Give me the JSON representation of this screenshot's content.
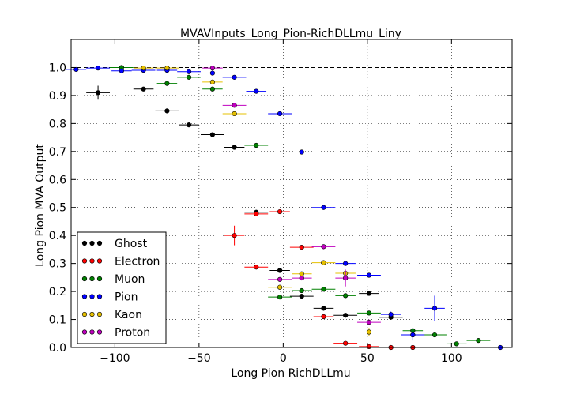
{
  "chart_data": {
    "type": "scatter",
    "title": "MVAVInputs_Long_Pion-RichDLLmu_Liny",
    "xlabel": "Long Pion RichDLLmu",
    "ylabel": "Long Pion MVA Output",
    "xlim": [
      -126,
      136
    ],
    "ylim": [
      0.0,
      1.1
    ],
    "x_ticks": [
      -100,
      -50,
      0,
      50,
      100
    ],
    "y_ticks": [
      0.0,
      0.1,
      0.2,
      0.3,
      0.4,
      0.5,
      0.6,
      0.7,
      0.8,
      0.9,
      1.0
    ],
    "x_tick_labels": [
      "−100",
      "−50",
      "0",
      "50",
      "100"
    ],
    "y_tick_labels": [
      "0.0",
      "0.1",
      "0.2",
      "0.3",
      "0.4",
      "0.5",
      "0.6",
      "0.7",
      "0.8",
      "0.9",
      "1.0"
    ],
    "reference_line_y": 1.0,
    "grid": true,
    "legend_position": "lower-left",
    "series": [
      {
        "name": "Ghost",
        "color": "#000000",
        "points": [
          {
            "x": -110,
            "y": 0.91,
            "xerr": 7,
            "yerr": 0.025
          },
          {
            "x": -83,
            "y": 0.923,
            "xerr": 6,
            "yerr": 0.005
          },
          {
            "x": -69,
            "y": 0.845,
            "xerr": 7,
            "yerr": 0.005
          },
          {
            "x": -56,
            "y": 0.795,
            "xerr": 6,
            "yerr": 0.005
          },
          {
            "x": -42,
            "y": 0.76,
            "xerr": 7,
            "yerr": 0.005
          },
          {
            "x": -29,
            "y": 0.715,
            "xerr": 6,
            "yerr": 0.005
          },
          {
            "x": -16,
            "y": 0.483,
            "xerr": 7,
            "yerr": 0.008
          },
          {
            "x": -2,
            "y": 0.275,
            "xerr": 6,
            "yerr": 0.008
          },
          {
            "x": 11,
            "y": 0.183,
            "xerr": 7,
            "yerr": 0.008
          },
          {
            "x": 24,
            "y": 0.14,
            "xerr": 6,
            "yerr": 0.008
          },
          {
            "x": 37,
            "y": 0.115,
            "xerr": 7,
            "yerr": 0.006
          },
          {
            "x": 51,
            "y": 0.193,
            "xerr": 6,
            "yerr": 0.008
          },
          {
            "x": 64,
            "y": 0.108,
            "xerr": 7,
            "yerr": 0.008
          },
          {
            "x": 77,
            "y": 0.045,
            "xerr": 6,
            "yerr": 0.01
          }
        ]
      },
      {
        "name": "Electron",
        "color": "#ff0000",
        "points": [
          {
            "x": -29,
            "y": 0.4,
            "xerr": 6,
            "yerr": 0.035
          },
          {
            "x": -16,
            "y": 0.477,
            "xerr": 7,
            "yerr": 0.008
          },
          {
            "x": -2,
            "y": 0.485,
            "xerr": 6,
            "yerr": 0.006
          },
          {
            "x": -16,
            "y": 0.287,
            "xerr": 7,
            "yerr": 0.006
          },
          {
            "x": 11,
            "y": 0.358,
            "xerr": 7,
            "yerr": 0.006
          },
          {
            "x": 24,
            "y": 0.11,
            "xerr": 6,
            "yerr": 0.006
          },
          {
            "x": 37,
            "y": 0.015,
            "xerr": 7,
            "yerr": 0.005
          },
          {
            "x": 51,
            "y": 0.003,
            "xerr": 6,
            "yerr": 0.003
          },
          {
            "x": 64,
            "y": 0.0,
            "xerr": 7,
            "yerr": 0.002
          },
          {
            "x": 77,
            "y": 0.0,
            "xerr": 6,
            "yerr": 0.002
          }
        ]
      },
      {
        "name": "Muon",
        "color": "#008000",
        "points": [
          {
            "x": -96,
            "y": 1.0,
            "xerr": 7,
            "yerr": 0.003
          },
          {
            "x": -69,
            "y": 0.943,
            "xerr": 6,
            "yerr": 0.005
          },
          {
            "x": -56,
            "y": 0.965,
            "xerr": 7,
            "yerr": 0.004
          },
          {
            "x": -42,
            "y": 0.923,
            "xerr": 6,
            "yerr": 0.005
          },
          {
            "x": -16,
            "y": 0.722,
            "xerr": 7,
            "yerr": 0.006
          },
          {
            "x": -2,
            "y": 0.18,
            "xerr": 7,
            "yerr": 0.006
          },
          {
            "x": 11,
            "y": 0.203,
            "xerr": 6,
            "yerr": 0.006
          },
          {
            "x": 24,
            "y": 0.208,
            "xerr": 7,
            "yerr": 0.006
          },
          {
            "x": 37,
            "y": 0.185,
            "xerr": 6,
            "yerr": 0.006
          },
          {
            "x": 51,
            "y": 0.123,
            "xerr": 7,
            "yerr": 0.006
          },
          {
            "x": 77,
            "y": 0.06,
            "xerr": 6,
            "yerr": 0.006
          },
          {
            "x": 90,
            "y": 0.045,
            "xerr": 7,
            "yerr": 0.006
          },
          {
            "x": 103,
            "y": 0.013,
            "xerr": 6,
            "yerr": 0.006
          },
          {
            "x": 116,
            "y": 0.025,
            "xerr": 7,
            "yerr": 0.006
          }
        ]
      },
      {
        "name": "Pion",
        "color": "#0000ff",
        "points": [
          {
            "x": -123,
            "y": 0.993,
            "xerr": 6,
            "yerr": 0.003
          },
          {
            "x": -110,
            "y": 0.998,
            "xerr": 7,
            "yerr": 0.002
          },
          {
            "x": -96,
            "y": 0.988,
            "xerr": 6,
            "yerr": 0.003
          },
          {
            "x": -83,
            "y": 0.99,
            "xerr": 7,
            "yerr": 0.003
          },
          {
            "x": -69,
            "y": 0.99,
            "xerr": 6,
            "yerr": 0.003
          },
          {
            "x": -56,
            "y": 0.985,
            "xerr": 7,
            "yerr": 0.003
          },
          {
            "x": -42,
            "y": 0.98,
            "xerr": 6,
            "yerr": 0.003
          },
          {
            "x": -29,
            "y": 0.965,
            "xerr": 7,
            "yerr": 0.004
          },
          {
            "x": -16,
            "y": 0.915,
            "xerr": 6,
            "yerr": 0.005
          },
          {
            "x": -2,
            "y": 0.835,
            "xerr": 7,
            "yerr": 0.005
          },
          {
            "x": 11,
            "y": 0.698,
            "xerr": 6,
            "yerr": 0.006
          },
          {
            "x": 24,
            "y": 0.5,
            "xerr": 7,
            "yerr": 0.006
          },
          {
            "x": 37,
            "y": 0.3,
            "xerr": 6,
            "yerr": 0.006
          },
          {
            "x": 51,
            "y": 0.258,
            "xerr": 7,
            "yerr": 0.006
          },
          {
            "x": 64,
            "y": 0.118,
            "xerr": 6,
            "yerr": 0.01
          },
          {
            "x": 77,
            "y": 0.045,
            "xerr": 7,
            "yerr": 0.02
          },
          {
            "x": 90,
            "y": 0.14,
            "xerr": 6,
            "yerr": 0.045
          },
          {
            "x": 129,
            "y": 0.0,
            "xerr": 6,
            "yerr": 0.003
          }
        ]
      },
      {
        "name": "Kaon",
        "color": "#e6c000",
        "points": [
          {
            "x": -83,
            "y": 0.998,
            "xerr": 6,
            "yerr": 0.002
          },
          {
            "x": -69,
            "y": 0.998,
            "xerr": 7,
            "yerr": 0.002
          },
          {
            "x": -42,
            "y": 0.948,
            "xerr": 6,
            "yerr": 0.005
          },
          {
            "x": -29,
            "y": 0.835,
            "xerr": 7,
            "yerr": 0.006
          },
          {
            "x": -2,
            "y": 0.215,
            "xerr": 7,
            "yerr": 0.006
          },
          {
            "x": 11,
            "y": 0.263,
            "xerr": 6,
            "yerr": 0.006
          },
          {
            "x": 24,
            "y": 0.303,
            "xerr": 7,
            "yerr": 0.006
          },
          {
            "x": 37,
            "y": 0.265,
            "xerr": 6,
            "yerr": 0.006
          },
          {
            "x": 51,
            "y": 0.055,
            "xerr": 7,
            "yerr": 0.015
          }
        ]
      },
      {
        "name": "Proton",
        "color": "#bf00bf",
        "points": [
          {
            "x": -42,
            "y": 0.998,
            "xerr": 6,
            "yerr": 0.002
          },
          {
            "x": -29,
            "y": 0.865,
            "xerr": 7,
            "yerr": 0.006
          },
          {
            "x": -2,
            "y": 0.243,
            "xerr": 7,
            "yerr": 0.006
          },
          {
            "x": 11,
            "y": 0.248,
            "xerr": 6,
            "yerr": 0.006
          },
          {
            "x": 24,
            "y": 0.36,
            "xerr": 7,
            "yerr": 0.006
          },
          {
            "x": 37,
            "y": 0.248,
            "xerr": 6,
            "yerr": 0.03
          },
          {
            "x": 51,
            "y": 0.09,
            "xerr": 7,
            "yerr": 0.01
          }
        ]
      }
    ]
  }
}
